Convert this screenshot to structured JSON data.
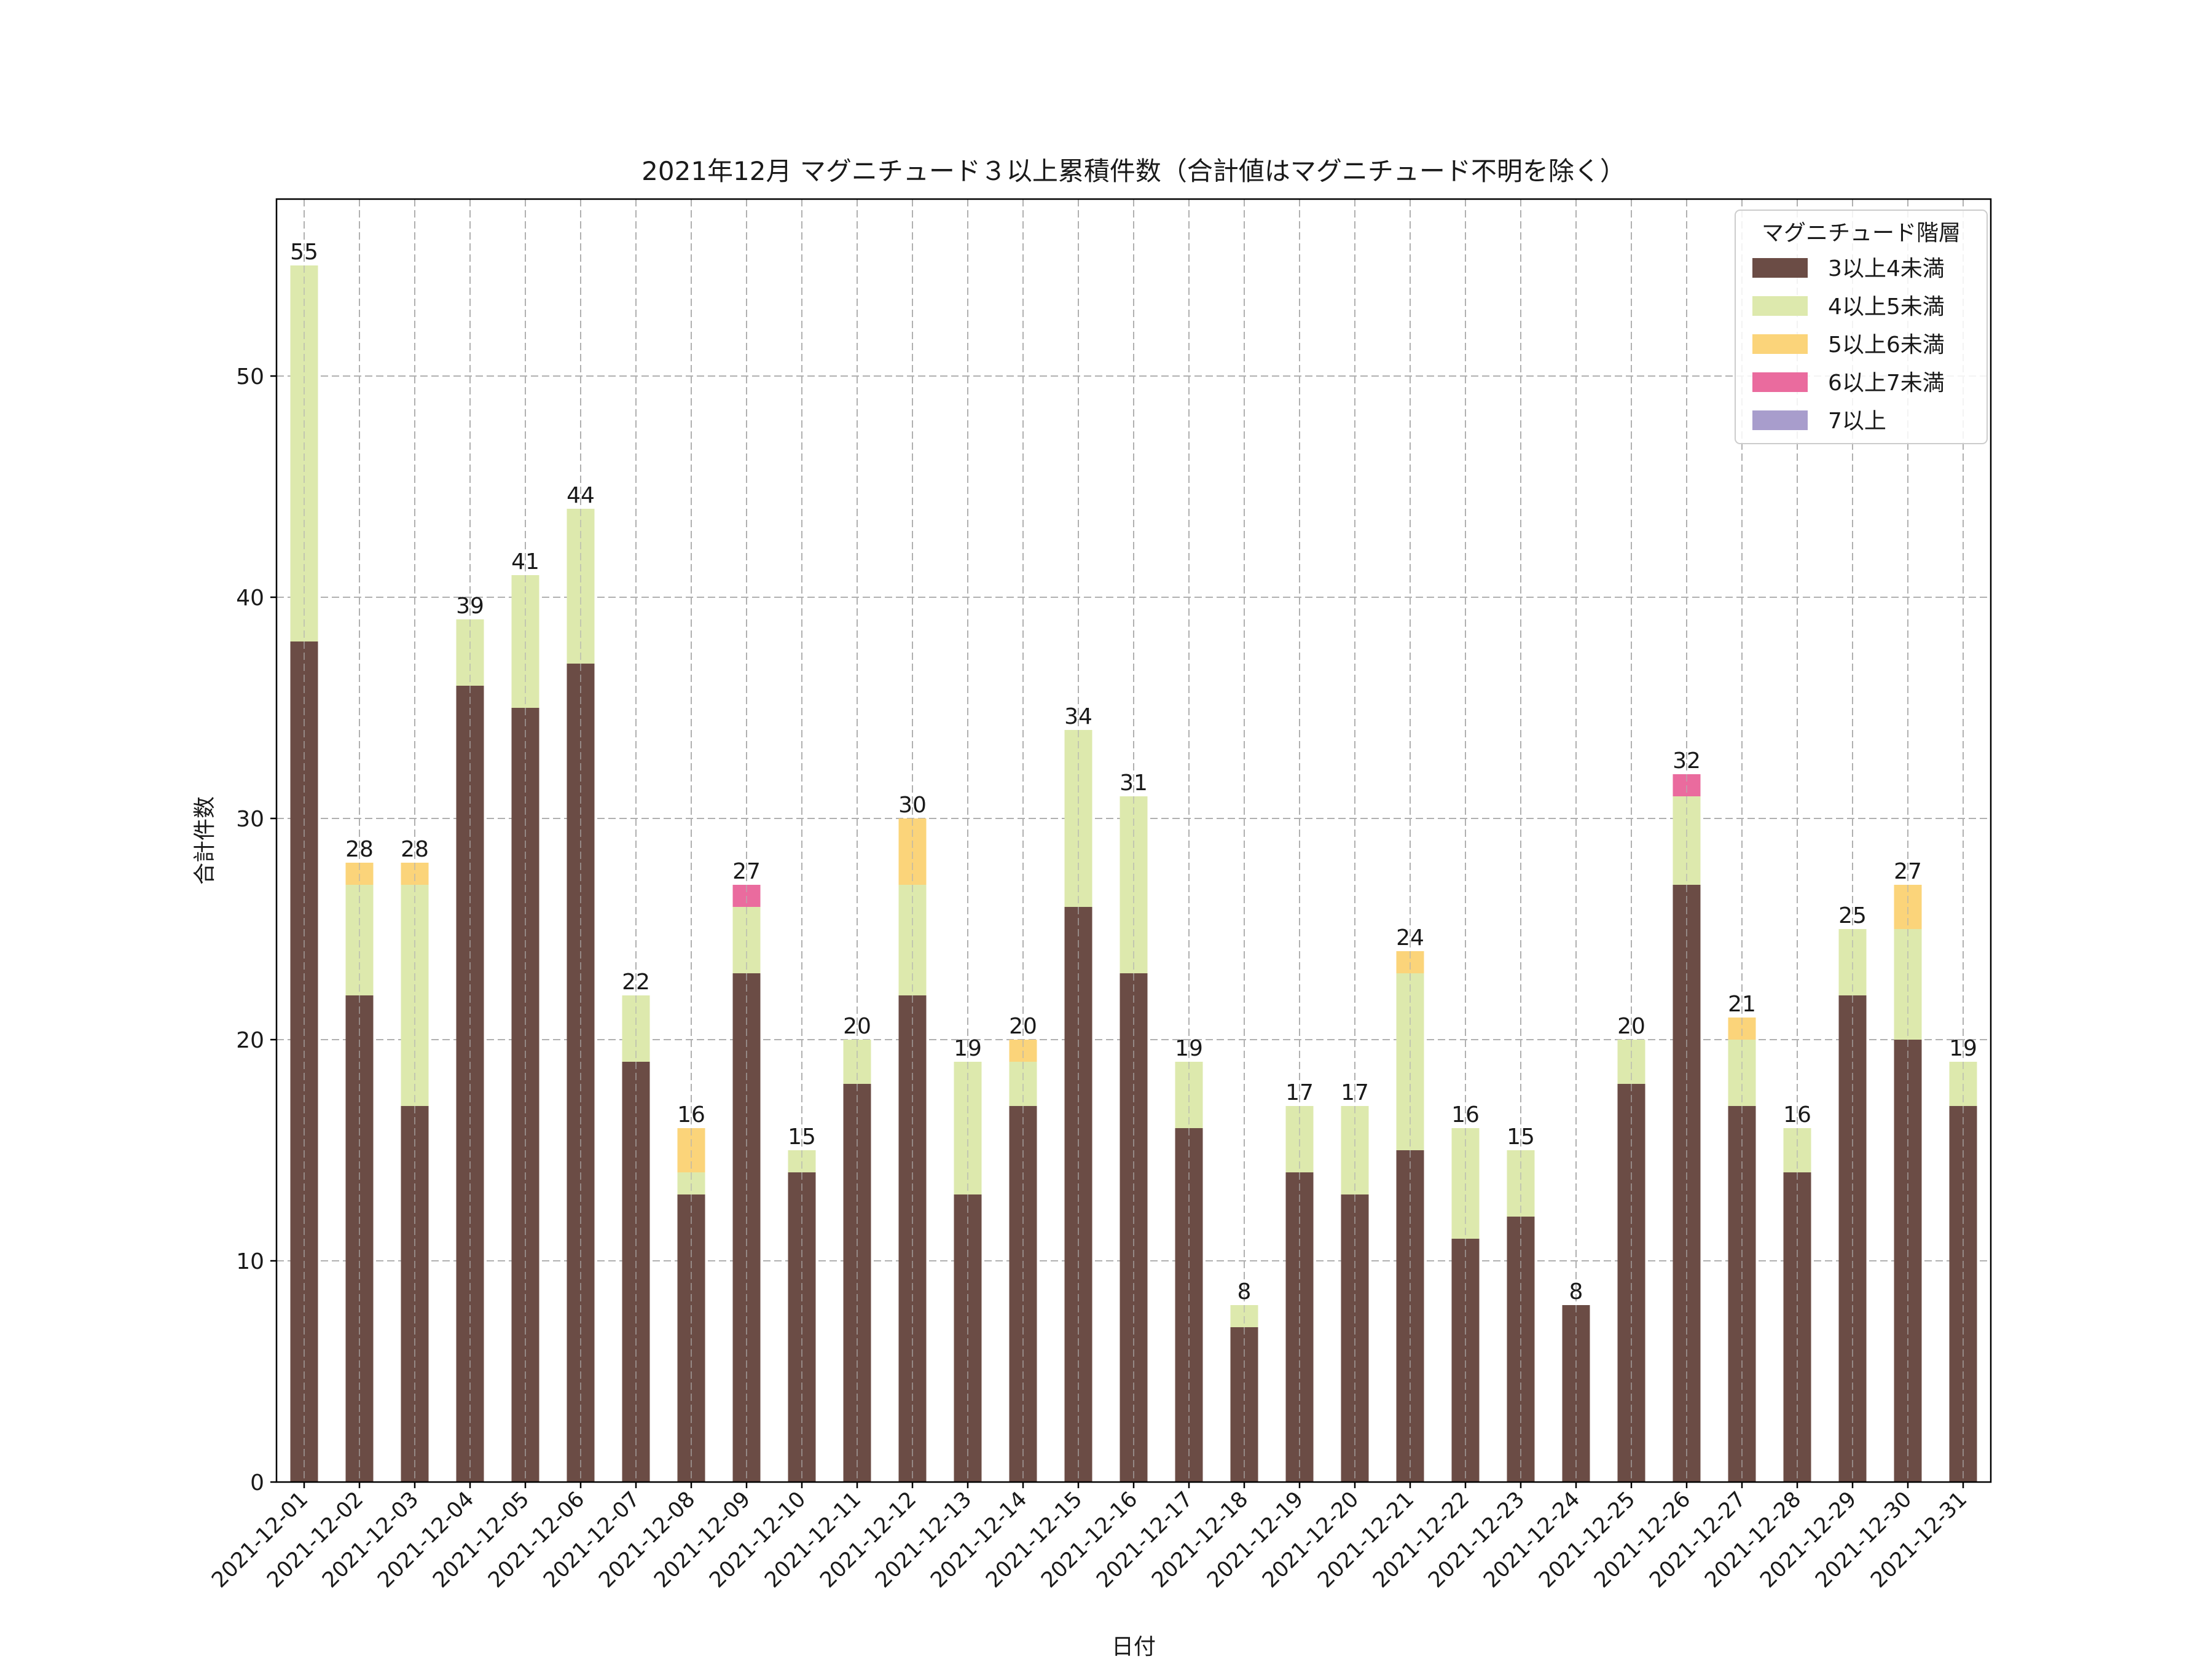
{
  "chart_data": {
    "type": "bar",
    "stacked": true,
    "title": "2021年12月 マグニチュード３以上累積件数（合計値はマグニチュード不明を除く）",
    "xlabel": "日付",
    "ylabel": "合計件数",
    "ylim": [
      0,
      58
    ],
    "yticks": [
      0,
      10,
      20,
      30,
      40,
      50
    ],
    "ytick_labels": [
      "0",
      "10",
      "20",
      "30",
      "40",
      "50"
    ],
    "grid": true,
    "legend_title": "マグニチュード階層",
    "legend_position": "top-right",
    "categories": [
      "2021-12-01",
      "2021-12-02",
      "2021-12-03",
      "2021-12-04",
      "2021-12-05",
      "2021-12-06",
      "2021-12-07",
      "2021-12-08",
      "2021-12-09",
      "2021-12-10",
      "2021-12-11",
      "2021-12-12",
      "2021-12-13",
      "2021-12-14",
      "2021-12-15",
      "2021-12-16",
      "2021-12-17",
      "2021-12-18",
      "2021-12-19",
      "2021-12-20",
      "2021-12-21",
      "2021-12-22",
      "2021-12-23",
      "2021-12-24",
      "2021-12-25",
      "2021-12-26",
      "2021-12-27",
      "2021-12-28",
      "2021-12-29",
      "2021-12-30",
      "2021-12-31"
    ],
    "series": [
      {
        "name": "3以上4未満",
        "color": "#6b4c45",
        "values": [
          38,
          22,
          17,
          36,
          35,
          37,
          19,
          13,
          23,
          14,
          18,
          22,
          13,
          17,
          26,
          23,
          16,
          7,
          14,
          13,
          15,
          11,
          12,
          8,
          18,
          27,
          17,
          14,
          22,
          20,
          17
        ]
      },
      {
        "name": "4以上5未満",
        "color": "#dde9ad",
        "values": [
          17,
          5,
          10,
          3,
          6,
          7,
          3,
          1,
          3,
          1,
          2,
          5,
          6,
          2,
          8,
          8,
          3,
          1,
          3,
          4,
          8,
          5,
          3,
          0,
          2,
          4,
          3,
          2,
          3,
          5,
          2
        ]
      },
      {
        "name": "5以上6未満",
        "color": "#fbd47a",
        "values": [
          0,
          1,
          1,
          0,
          0,
          0,
          0,
          2,
          0,
          0,
          0,
          3,
          0,
          1,
          0,
          0,
          0,
          0,
          0,
          0,
          1,
          0,
          0,
          0,
          0,
          0,
          1,
          0,
          0,
          2,
          0
        ]
      },
      {
        "name": "6以上7未満",
        "color": "#ea6b9e",
        "values": [
          0,
          0,
          0,
          0,
          0,
          0,
          0,
          0,
          1,
          0,
          0,
          0,
          0,
          0,
          0,
          0,
          0,
          0,
          0,
          0,
          0,
          0,
          0,
          0,
          0,
          1,
          0,
          0,
          0,
          0,
          0
        ]
      },
      {
        "name": "7以上",
        "color": "#a89dcc",
        "values": [
          0,
          0,
          0,
          0,
          0,
          0,
          0,
          0,
          0,
          0,
          0,
          0,
          0,
          0,
          0,
          0,
          0,
          0,
          0,
          0,
          0,
          0,
          0,
          0,
          0,
          0,
          0,
          0,
          0,
          0,
          0
        ]
      }
    ],
    "totals": [
      55,
      28,
      28,
      39,
      41,
      44,
      22,
      16,
      27,
      15,
      20,
      30,
      19,
      20,
      34,
      31,
      19,
      8,
      17,
      17,
      24,
      16,
      15,
      8,
      20,
      32,
      21,
      16,
      25,
      27,
      19
    ]
  }
}
